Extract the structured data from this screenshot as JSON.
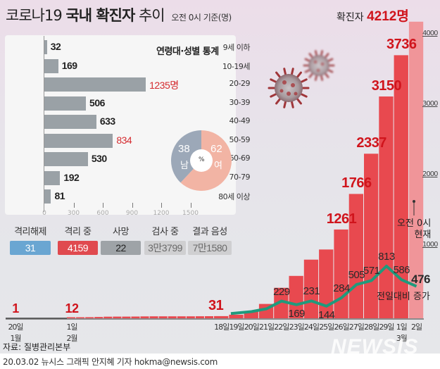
{
  "header": {
    "title_light": "코로나19",
    "title_bold": "국내 확진자",
    "title_light2": "추이",
    "subtitle": "오전 0시 기준(명)"
  },
  "total": {
    "label": "확진자",
    "value": "4212명"
  },
  "age_panel": {
    "title": "연령대·성별 통계",
    "unit_suffix": "명",
    "x_ticks": [
      "0",
      "300",
      "600",
      "900",
      "1200",
      "1500"
    ],
    "groups": [
      {
        "label": "9세 이하",
        "value": 32,
        "display": "32",
        "highlight": false
      },
      {
        "label": "10-19세",
        "value": 169,
        "display": "169",
        "highlight": false
      },
      {
        "label": "20-29",
        "value": 1235,
        "display": "1235명",
        "highlight": true
      },
      {
        "label": "30-39",
        "value": 506,
        "display": "506",
        "highlight": false
      },
      {
        "label": "40-49",
        "value": 633,
        "display": "633",
        "highlight": false
      },
      {
        "label": "50-59",
        "value": 834,
        "display": "834",
        "highlight": true
      },
      {
        "label": "60-69",
        "value": 530,
        "display": "530",
        "highlight": false
      },
      {
        "label": "70-79",
        "value": 192,
        "display": "192",
        "highlight": false
      },
      {
        "label": "80세 이상",
        "value": 81,
        "display": "81",
        "highlight": false
      }
    ],
    "gender": {
      "center": "%",
      "male": {
        "label": "남",
        "value": 38,
        "color": "#9ca8b8"
      },
      "female": {
        "label": "여",
        "value": 62,
        "color": "#f2b4a4"
      }
    }
  },
  "stats": [
    {
      "label": "격리해제",
      "value": "31",
      "bg": "#6aa6d2",
      "fg": "#ffffff"
    },
    {
      "label": "격리 중",
      "value": "4159",
      "bg": "#e04a4f",
      "fg": "#ffffff"
    },
    {
      "label": "사망",
      "value": "22",
      "bg": "#9ea3a7",
      "fg": "#222222"
    },
    {
      "label": "검사 중",
      "value": "3만3799",
      "bg": "#cfcfd1",
      "fg": "#6a6a6a"
    },
    {
      "label": "결과 음성",
      "value": "7만1580",
      "bg": "#cfcfd1",
      "fg": "#6a6a6a"
    }
  ],
  "notes": {
    "time_line1": "오전 0시",
    "time_line2": "현재",
    "increase": "전일대비 증가"
  },
  "chart_data": {
    "type": "bar",
    "title": "코로나19 국내 확진자 추이",
    "subtitle": "오전 0시 기준(명)",
    "ylim": [
      0,
      4300
    ],
    "y_ticks": [
      1000,
      2000,
      3000,
      4000
    ],
    "colors": {
      "bar": "#e8494f",
      "bar_latest": "#f09599",
      "line": "#1f9a7c",
      "early_line": "#666666",
      "label": "#d0141c"
    },
    "early": [
      {
        "date": "20일",
        "month": "1월",
        "value": 1
      },
      {
        "date": "1일",
        "month": "2월",
        "value": 12
      }
    ],
    "feb_small_values": [
      15,
      15,
      16,
      19,
      23,
      24,
      24,
      25,
      27,
      28,
      28,
      28,
      28,
      28,
      29,
      30
    ],
    "categories": [
      "18일",
      "19일",
      "20일",
      "21일",
      "22일",
      "23일",
      "24일",
      "25일",
      "26일",
      "27일",
      "28일",
      "29일",
      "1일",
      "2일"
    ],
    "month_mark": {
      "index": 12,
      "label": "3월"
    },
    "series": [
      {
        "name": "누적 확진자",
        "values": [
          31,
          51,
          104,
          204,
          433,
          602,
          833,
          977,
          1261,
          1766,
          2337,
          3150,
          3736,
          4212
        ],
        "labeled": [
          0,
          8,
          9,
          10,
          11,
          12
        ]
      },
      {
        "name": "전일대비 증가",
        "values": [
          null,
          20,
          53,
          100,
          229,
          169,
          231,
          144,
          284,
          505,
          571,
          813,
          586,
          476
        ],
        "labeled": [
          4,
          5,
          6,
          7,
          8,
          9,
          10,
          11,
          12,
          13
        ]
      }
    ]
  },
  "footer": {
    "source": "자료: 질병관리본부",
    "credit": "20.03.02 뉴시스 그래픽 안지혜 기자 hokma@newsis.com",
    "watermark": "NEWSIS"
  }
}
